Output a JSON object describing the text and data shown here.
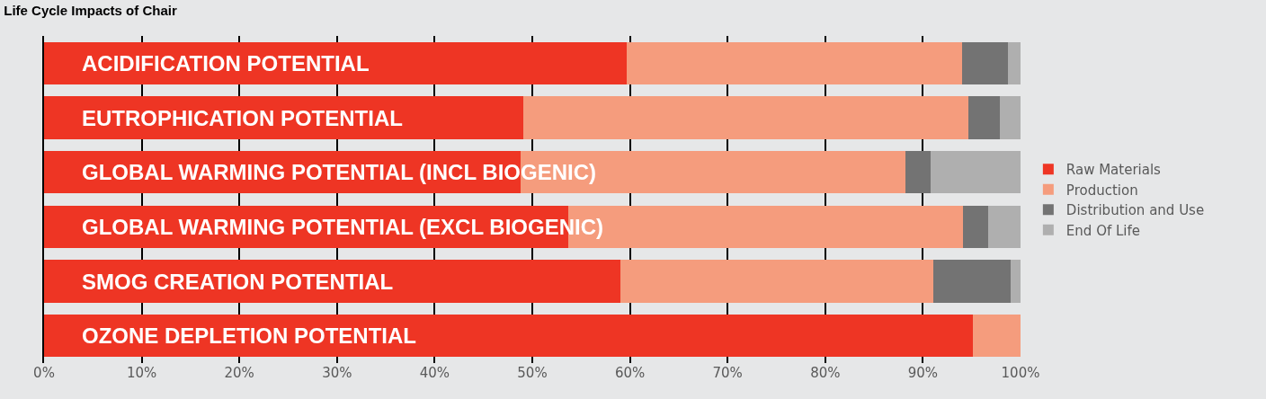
{
  "chart_data": {
    "type": "bar",
    "orientation": "horizontal",
    "stacked": true,
    "title": "Life Cycle Impacts of Chair",
    "categories": [
      "ACIDIFICATION POTENTIAL",
      "EUTROPHICATION POTENTIAL",
      "GLOBAL WARMING POTENTIAL (INCL BIOGENIC)",
      "GLOBAL WARMING POTENTIAL (EXCL BIOGENIC)",
      "SMOG CREATION POTENTIAL",
      "OZONE DEPLETION POTENTIAL"
    ],
    "series": [
      {
        "name": "Raw Materials",
        "color": "#ee3524",
        "values": [
          59.7,
          49.1,
          48.8,
          53.7,
          59.0,
          95.1
        ]
      },
      {
        "name": "Production",
        "color": "#f59c7d",
        "values": [
          34.3,
          45.6,
          39.4,
          40.4,
          32.1,
          4.9
        ]
      },
      {
        "name": "Distribution and Use",
        "color": "#737373",
        "values": [
          4.7,
          3.2,
          2.6,
          2.6,
          7.9,
          0
        ]
      },
      {
        "name": "End Of Life",
        "color": "#afafaf",
        "values": [
          1.3,
          2.1,
          9.2,
          3.3,
          1.0,
          0
        ]
      }
    ],
    "xlim": [
      0,
      100
    ],
    "xticks": [
      {
        "value": 0,
        "label": "0%"
      },
      {
        "value": 10,
        "label": "10%"
      },
      {
        "value": 20,
        "label": "20%"
      },
      {
        "value": 30,
        "label": "30%"
      },
      {
        "value": 40,
        "label": "40%"
      },
      {
        "value": 50,
        "label": "50%"
      },
      {
        "value": 60,
        "label": "60%"
      },
      {
        "value": 70,
        "label": "70%"
      },
      {
        "value": 80,
        "label": "80%"
      },
      {
        "value": 90,
        "label": "90%"
      },
      {
        "value": 100,
        "label": "100%"
      }
    ],
    "grid": "x",
    "legend": "right"
  }
}
